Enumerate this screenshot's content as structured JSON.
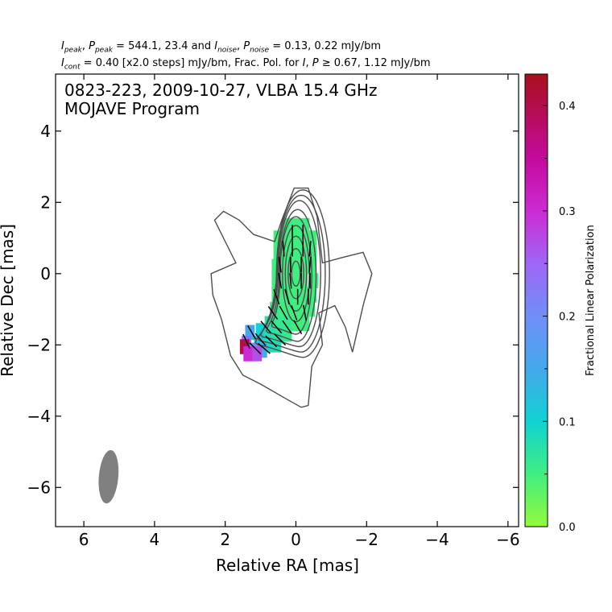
{
  "header": {
    "line1": {
      "i_peak_sym": "I",
      "i_peak_sub": "peak",
      "p_peak_sym": "P",
      "p_peak_sub": "peak",
      "peak_values": " = 544.1, 23.4 and ",
      "i_noise_sym": "I",
      "i_noise_sub": "noise",
      "p_noise_sym": "P",
      "p_noise_sub": "noise",
      "noise_values": " = 0.13, 0.22 mJy/bm"
    },
    "line2": {
      "i_cont_sym": "I",
      "i_cont_sub": "cont",
      "cont_text": " = 0.40 [x2.0 steps] mJy/bm, Frac. Pol. for ",
      "i_sym": "I",
      "p_sym": "P",
      "frac_text": " ≥  0.67, 1.12 mJy/bm"
    }
  },
  "chart_data": {
    "type": "contour",
    "annotation_line1": "0823-223, 2009-10-27, VLBA 15.4 GHz",
    "annotation_line2": "MOJAVE Program",
    "xlabel": "Relative RA [mas]",
    "ylabel": "Relative Dec [mas]",
    "xlim": [
      6.8,
      -6.3
    ],
    "ylim": [
      -7.1,
      5.6
    ],
    "x_ticks": [
      6,
      4,
      2,
      0,
      -2,
      -4,
      -6
    ],
    "x_tick_labels": [
      "6",
      "4",
      "2",
      "0",
      "−2",
      "−4",
      "−6"
    ],
    "y_ticks": [
      4,
      2,
      0,
      -2,
      -4,
      -6
    ],
    "y_tick_labels": [
      "4",
      "2",
      "0",
      "−2",
      "−4",
      "−6"
    ],
    "contour_color": "#4d4d4d",
    "outer_contour": [
      [
        1.7,
        0.3
      ],
      [
        2.3,
        1.5
      ],
      [
        2.05,
        1.75
      ],
      [
        1.6,
        1.5
      ],
      [
        1.2,
        1.1
      ],
      [
        0.6,
        0.9
      ],
      [
        0.4,
        1.5
      ],
      [
        0.05,
        2.4
      ],
      [
        -0.35,
        2.4
      ],
      [
        -0.6,
        1.6
      ],
      [
        -0.75,
        0.3
      ],
      [
        -1.3,
        0.45
      ],
      [
        -1.9,
        0.6
      ],
      [
        -2.15,
        0.0
      ],
      [
        -1.9,
        -0.9
      ],
      [
        -1.6,
        -2.2
      ],
      [
        -1.4,
        -1.5
      ],
      [
        -1.1,
        -0.9
      ],
      [
        -0.65,
        -1.1
      ],
      [
        -0.75,
        -2.0
      ],
      [
        -0.45,
        -2.6
      ],
      [
        -0.35,
        -3.7
      ],
      [
        -0.15,
        -3.75
      ],
      [
        0.3,
        -3.5
      ],
      [
        1.0,
        -3.1
      ],
      [
        1.5,
        -2.85
      ],
      [
        1.85,
        -2.3
      ],
      [
        2.1,
        -1.3
      ],
      [
        2.35,
        -0.6
      ],
      [
        2.4,
        0.0
      ]
    ],
    "inner_contours": [
      {
        "cx": -0.2,
        "cy": 0.0,
        "rx": 0.75,
        "ry": 2.35,
        "rot": 0,
        "tail_x": 1.4,
        "tail_y": -2.2
      },
      {
        "cx": -0.15,
        "cy": 0.0,
        "rx": 0.68,
        "ry": 2.2,
        "rot": 0,
        "tail_x": 1.3,
        "tail_y": -2.1
      },
      {
        "cx": -0.1,
        "cy": 0.0,
        "rx": 0.6,
        "ry": 2.05,
        "rot": 0,
        "tail_x": 1.2,
        "tail_y": -2.0
      },
      {
        "cx": -0.05,
        "cy": -0.05,
        "rx": 0.52,
        "ry": 1.85,
        "rot": 0,
        "tail_x": 1.0,
        "tail_y": -1.85
      },
      {
        "cx": 0.0,
        "cy": -0.05,
        "rx": 0.45,
        "ry": 1.65,
        "rot": 0,
        "tail_x": 0.8,
        "tail_y": -1.7
      },
      {
        "cx": 0.0,
        "cy": 0.0,
        "rx": 0.38,
        "ry": 1.35,
        "rot": 0
      },
      {
        "cx": 0.0,
        "cy": 0.0,
        "rx": 0.3,
        "ry": 1.05,
        "rot": 0
      },
      {
        "cx": 0.0,
        "cy": 0.0,
        "rx": 0.22,
        "ry": 0.7,
        "rot": 0
      },
      {
        "cx": 0.0,
        "cy": 0.0,
        "rx": 0.12,
        "ry": 0.35,
        "rot": 0
      }
    ],
    "polarization_cells": [
      {
        "ra": 0.25,
        "dec": 1.35,
        "frac": 0.05
      },
      {
        "ra": 0.0,
        "dec": 1.35,
        "frac": 0.05
      },
      {
        "ra": -0.25,
        "dec": 1.35,
        "frac": 0.05
      },
      {
        "ra": 0.5,
        "dec": 1.0,
        "frac": 0.05
      },
      {
        "ra": 0.25,
        "dec": 1.0,
        "frac": 0.05
      },
      {
        "ra": 0.0,
        "dec": 1.0,
        "frac": 0.05
      },
      {
        "ra": -0.25,
        "dec": 1.0,
        "frac": 0.05
      },
      {
        "ra": -0.45,
        "dec": 1.0,
        "frac": 0.05
      },
      {
        "ra": 0.5,
        "dec": 0.6,
        "frac": 0.05
      },
      {
        "ra": 0.25,
        "dec": 0.6,
        "frac": 0.05
      },
      {
        "ra": 0.0,
        "dec": 0.6,
        "frac": 0.05
      },
      {
        "ra": -0.25,
        "dec": 0.6,
        "frac": 0.05
      },
      {
        "ra": -0.45,
        "dec": 0.6,
        "frac": 0.05
      },
      {
        "ra": 0.55,
        "dec": 0.2,
        "frac": 0.05
      },
      {
        "ra": 0.3,
        "dec": 0.2,
        "frac": 0.05
      },
      {
        "ra": 0.05,
        "dec": 0.2,
        "frac": 0.05
      },
      {
        "ra": -0.2,
        "dec": 0.2,
        "frac": 0.05
      },
      {
        "ra": -0.45,
        "dec": 0.2,
        "frac": 0.05
      },
      {
        "ra": 0.55,
        "dec": -0.2,
        "frac": 0.05
      },
      {
        "ra": 0.3,
        "dec": -0.2,
        "frac": 0.05
      },
      {
        "ra": 0.05,
        "dec": -0.2,
        "frac": 0.05
      },
      {
        "ra": -0.2,
        "dec": -0.2,
        "frac": 0.05
      },
      {
        "ra": -0.5,
        "dec": -0.2,
        "frac": 0.05
      },
      {
        "ra": 0.55,
        "dec": -0.6,
        "frac": 0.05
      },
      {
        "ra": 0.3,
        "dec": -0.6,
        "frac": 0.05
      },
      {
        "ra": 0.05,
        "dec": -0.6,
        "frac": 0.05
      },
      {
        "ra": -0.2,
        "dec": -0.6,
        "frac": 0.05
      },
      {
        "ra": -0.45,
        "dec": -0.6,
        "frac": 0.05
      },
      {
        "ra": 0.6,
        "dec": -1.0,
        "frac": 0.06
      },
      {
        "ra": 0.35,
        "dec": -1.0,
        "frac": 0.05
      },
      {
        "ra": 0.1,
        "dec": -1.0,
        "frac": 0.05
      },
      {
        "ra": -0.15,
        "dec": -1.0,
        "frac": 0.05
      },
      {
        "ra": -0.4,
        "dec": -1.0,
        "frac": 0.05
      },
      {
        "ra": 0.75,
        "dec": -1.4,
        "frac": 0.07
      },
      {
        "ra": 0.5,
        "dec": -1.4,
        "frac": 0.06
      },
      {
        "ra": 0.25,
        "dec": -1.4,
        "frac": 0.06
      },
      {
        "ra": 0.0,
        "dec": -1.4,
        "frac": 0.05
      },
      {
        "ra": -0.25,
        "dec": -1.4,
        "frac": 0.05
      },
      {
        "ra": 1.0,
        "dec": -1.6,
        "frac": 0.1
      },
      {
        "ra": 0.75,
        "dec": -1.75,
        "frac": 0.08
      },
      {
        "ra": 0.5,
        "dec": -1.75,
        "frac": 0.07
      },
      {
        "ra": 0.25,
        "dec": -1.7,
        "frac": 0.06
      },
      {
        "ra": 1.3,
        "dec": -1.65,
        "frac": 0.15
      },
      {
        "ra": 1.05,
        "dec": -1.95,
        "frac": 0.12
      },
      {
        "ra": 0.8,
        "dec": -2.0,
        "frac": 0.09
      },
      {
        "ra": 0.55,
        "dec": -2.0,
        "frac": 0.08
      },
      {
        "ra": 1.4,
        "dec": -1.95,
        "frac": 0.24
      },
      {
        "ra": 1.2,
        "dec": -2.15,
        "frac": 0.2
      },
      {
        "ra": 0.95,
        "dec": -2.15,
        "frac": 0.14
      },
      {
        "ra": 1.45,
        "dec": -2.05,
        "frac": 0.4
      },
      {
        "ra": 1.35,
        "dec": -2.25,
        "frac": 0.3
      },
      {
        "ra": 1.1,
        "dec": -2.25,
        "frac": 0.27
      }
    ],
    "evpa_vectors": [
      {
        "ra": 0.1,
        "dec": 1.15,
        "angle_deg": 0
      },
      {
        "ra": -0.2,
        "dec": 1.15,
        "angle_deg": 0
      },
      {
        "ra": 0.35,
        "dec": 0.7,
        "angle_deg": 5
      },
      {
        "ra": 0.1,
        "dec": 0.7,
        "angle_deg": 0
      },
      {
        "ra": -0.2,
        "dec": 0.7,
        "angle_deg": 0
      },
      {
        "ra": -0.4,
        "dec": 0.7,
        "angle_deg": -5
      },
      {
        "ra": 0.45,
        "dec": 0.25,
        "angle_deg": 8
      },
      {
        "ra": 0.15,
        "dec": 0.25,
        "angle_deg": 0
      },
      {
        "ra": -0.15,
        "dec": 0.25,
        "angle_deg": 0
      },
      {
        "ra": -0.4,
        "dec": 0.25,
        "angle_deg": -5
      },
      {
        "ra": 0.45,
        "dec": -0.2,
        "angle_deg": 10
      },
      {
        "ra": 0.15,
        "dec": -0.2,
        "angle_deg": 5
      },
      {
        "ra": -0.15,
        "dec": -0.2,
        "angle_deg": 0
      },
      {
        "ra": -0.4,
        "dec": -0.2,
        "angle_deg": 0
      },
      {
        "ra": 0.55,
        "dec": -0.65,
        "angle_deg": 20
      },
      {
        "ra": 0.25,
        "dec": -0.65,
        "angle_deg": 15
      },
      {
        "ra": -0.05,
        "dec": -0.65,
        "angle_deg": 0
      },
      {
        "ra": -0.35,
        "dec": -0.65,
        "angle_deg": 0
      },
      {
        "ra": 0.65,
        "dec": -1.1,
        "angle_deg": 35
      },
      {
        "ra": 0.35,
        "dec": -1.1,
        "angle_deg": 30
      },
      {
        "ra": 0.05,
        "dec": -1.1,
        "angle_deg": 20
      },
      {
        "ra": -0.25,
        "dec": -1.1,
        "angle_deg": 10
      },
      {
        "ra": 0.85,
        "dec": -1.5,
        "angle_deg": 40
      },
      {
        "ra": 0.55,
        "dec": -1.5,
        "angle_deg": 40
      },
      {
        "ra": 0.25,
        "dec": -1.5,
        "angle_deg": 35
      },
      {
        "ra": -0.05,
        "dec": -1.5,
        "angle_deg": 30
      },
      {
        "ra": 1.25,
        "dec": -1.65,
        "angle_deg": 30
      },
      {
        "ra": 1.0,
        "dec": -1.85,
        "angle_deg": 40
      },
      {
        "ra": 0.7,
        "dec": -1.9,
        "angle_deg": 45
      },
      {
        "ra": 0.45,
        "dec": -1.85,
        "angle_deg": 45
      },
      {
        "ra": 1.4,
        "dec": -1.9,
        "angle_deg": 25
      },
      {
        "ra": 1.15,
        "dec": -2.1,
        "angle_deg": 45
      },
      {
        "ra": 0.9,
        "dec": -2.1,
        "angle_deg": 50
      }
    ],
    "beam": {
      "ra": 5.3,
      "dec": -5.7,
      "major_mas": 1.5,
      "minor_mas": 0.55,
      "pa_deg": -5,
      "color": "#808080"
    },
    "colorbar": {
      "label": "Fractional Linear Polarization",
      "range": [
        0.0,
        0.43
      ],
      "ticks": [
        0.0,
        0.1,
        0.2,
        0.3,
        0.4
      ],
      "tick_labels": [
        "0.0",
        "0.1",
        "0.2",
        "0.3",
        "0.4"
      ],
      "minor_ticks": [
        0.05,
        0.15,
        0.25,
        0.35
      ],
      "stops": [
        {
          "v": 0.0,
          "color": "#94fa3a"
        },
        {
          "v": 0.05,
          "color": "#40ee80"
        },
        {
          "v": 0.1,
          "color": "#10d2d2"
        },
        {
          "v": 0.15,
          "color": "#44a8ec"
        },
        {
          "v": 0.2,
          "color": "#6f8ff8"
        },
        {
          "v": 0.25,
          "color": "#9f66f5"
        },
        {
          "v": 0.3,
          "color": "#cc2bd3"
        },
        {
          "v": 0.35,
          "color": "#c40a9c"
        },
        {
          "v": 0.43,
          "color": "#a8101c"
        }
      ]
    }
  }
}
